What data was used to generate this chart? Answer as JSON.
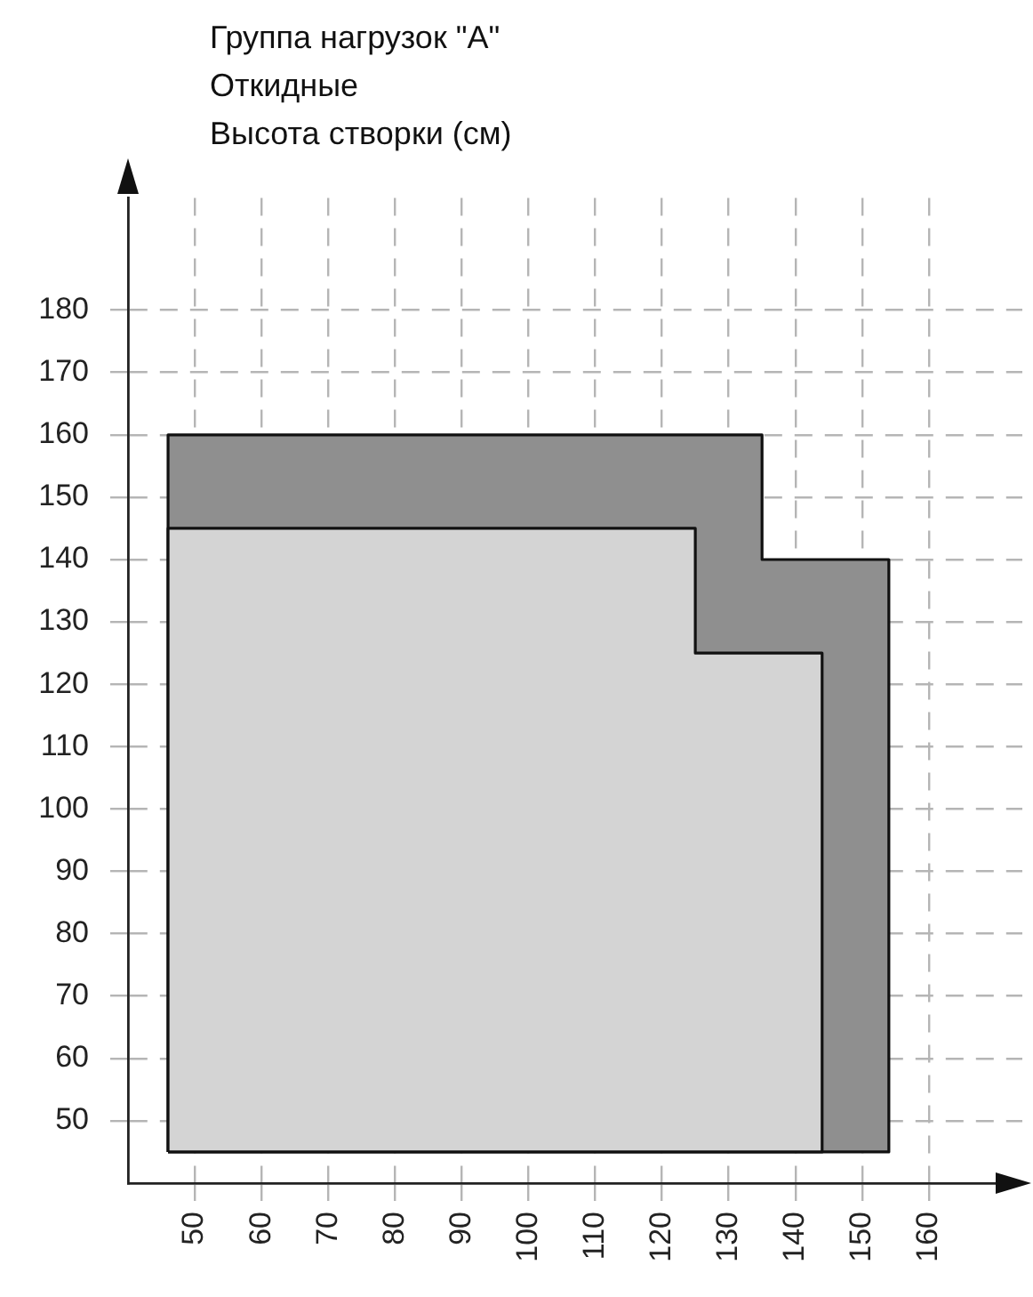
{
  "chart_data": {
    "type": "area",
    "title": "Группа нагрузок \"A\"",
    "subtitle": "Откидные",
    "ylabel": "Высота створки (см)",
    "series": [
      {
        "color": "#8f8f8f",
        "x": [
          46,
          46,
          135,
          135,
          154,
          154,
          46
        ],
        "values": [
          45,
          160,
          160,
          140,
          140,
          45,
          45
        ]
      },
      {
        "color": "#d4d4d4",
        "x": [
          46,
          46,
          125,
          125,
          144,
          144,
          46
        ],
        "values": [
          45,
          145,
          145,
          125,
          125,
          45,
          45
        ]
      }
    ],
    "xlim": [
      40,
      174
    ],
    "ylim": [
      40,
      198
    ],
    "xticks": [
      50,
      60,
      70,
      80,
      90,
      100,
      110,
      120,
      130,
      140,
      150,
      160
    ],
    "yticks": [
      50,
      60,
      70,
      80,
      90,
      100,
      110,
      120,
      130,
      140,
      150,
      160,
      170,
      180
    ],
    "grid": true,
    "legend": false,
    "marker": "none",
    "line_style": "solid"
  }
}
